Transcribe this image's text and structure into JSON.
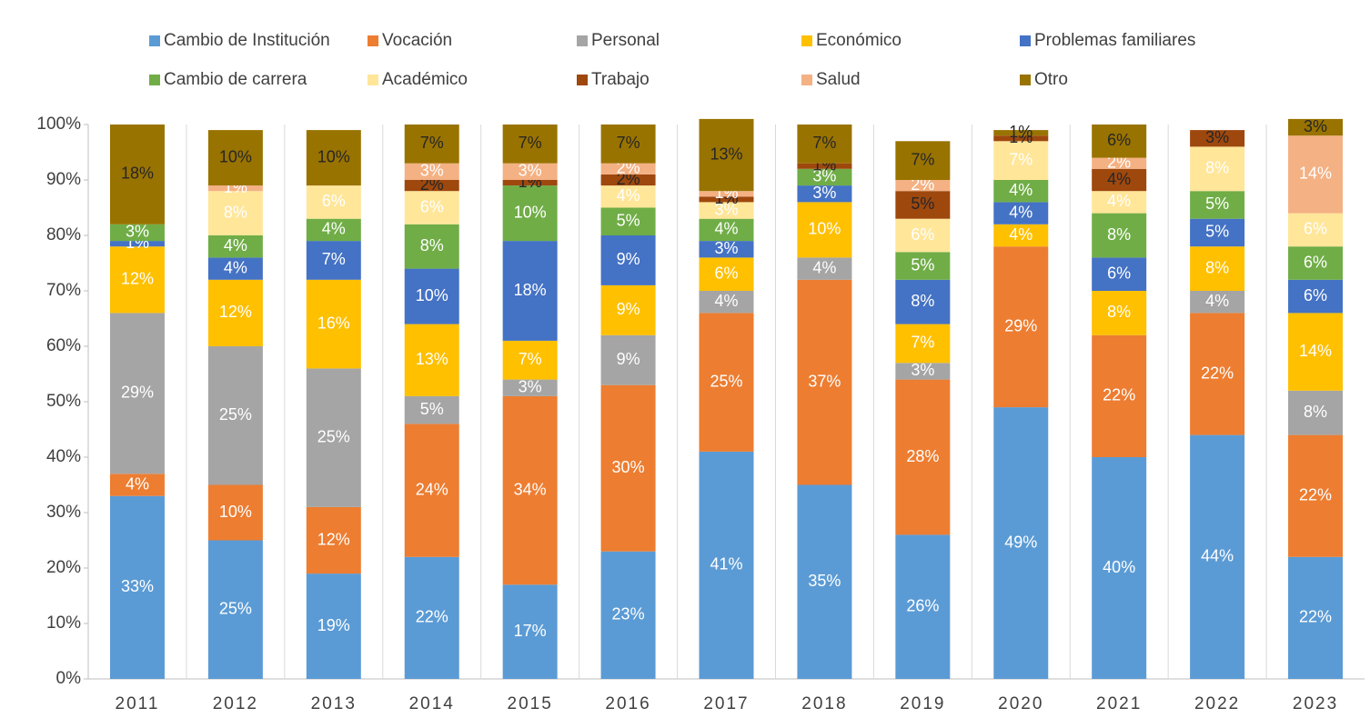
{
  "chart_data": {
    "type": "stacked_bar",
    "categories": [
      "2011",
      "2012",
      "2013",
      "2014",
      "2015",
      "2016",
      "2017",
      "2018",
      "2019",
      "2020",
      "2021",
      "2022",
      "2023"
    ],
    "ylim": [
      0,
      100
    ],
    "yticks": [
      {
        "value": 0,
        "label": "0%"
      },
      {
        "value": 10,
        "label": "10%"
      },
      {
        "value": 20,
        "label": "20%"
      },
      {
        "value": 30,
        "label": "30%"
      },
      {
        "value": 40,
        "label": "40%"
      },
      {
        "value": 50,
        "label": "50%"
      },
      {
        "value": 60,
        "label": "60%"
      },
      {
        "value": 70,
        "label": "70%"
      },
      {
        "value": 80,
        "label": "80%"
      },
      {
        "value": 90,
        "label": "90%"
      },
      {
        "value": 100,
        "label": "100%"
      }
    ],
    "series": [
      {
        "name": "Cambio de Institución",
        "color": "#5b9bd5",
        "values": [
          33,
          25,
          19,
          22,
          17,
          23,
          41,
          35,
          26,
          49,
          40,
          44,
          22
        ],
        "value_labels": [
          "33%",
          "25%",
          "19%",
          "22%",
          "17%",
          "23%",
          "41%",
          "35%",
          "26%",
          "49%",
          "40%",
          "44%",
          "22%"
        ]
      },
      {
        "name": "Vocación",
        "color": "#ed7d31",
        "values": [
          4,
          10,
          12,
          24,
          34,
          30,
          25,
          37,
          28,
          29,
          22,
          22,
          22
        ],
        "value_labels": [
          "4%",
          "10%",
          "12%",
          "24%",
          "34%",
          "30%",
          "25%",
          "37%",
          "28%",
          "29%",
          "22%",
          "22%",
          "22%"
        ]
      },
      {
        "name": "Personal",
        "color": "#a5a5a5",
        "values": [
          29,
          25,
          25,
          5,
          3,
          9,
          4,
          4,
          3,
          0,
          0,
          4,
          8
        ],
        "value_labels": [
          "29%",
          "25%",
          "25%",
          "5%",
          "3%",
          "9%",
          "4%",
          "4%",
          "3%",
          null,
          null,
          "4%",
          "8%"
        ]
      },
      {
        "name": "Económico",
        "color": "#ffc000",
        "values": [
          12,
          12,
          16,
          13,
          7,
          9,
          6,
          10,
          7,
          4,
          8,
          8,
          14
        ],
        "value_labels": [
          "12%",
          "12%",
          "16%",
          "13%",
          "7%",
          "9%",
          "6%",
          "10%",
          "7%",
          "4%",
          "8%",
          "8%",
          "14%"
        ]
      },
      {
        "name": "Problemas familiares",
        "color": "#4472c4",
        "values": [
          1,
          4,
          7,
          10,
          18,
          9,
          3,
          3,
          8,
          4,
          6,
          5,
          6
        ],
        "value_labels": [
          "1%",
          "4%",
          "7%",
          "10%",
          "18%",
          "9%",
          "3%",
          "3%",
          "8%",
          "4%",
          "6%",
          "5%",
          "6%"
        ]
      },
      {
        "name": "Cambio de carrera",
        "color": "#70ad47",
        "values": [
          3,
          4,
          4,
          8,
          10,
          5,
          4,
          3,
          5,
          4,
          8,
          5,
          6
        ],
        "value_labels": [
          "3%",
          "4%",
          "4%",
          "8%",
          "10%",
          "5%",
          "4%",
          "3%",
          "5%",
          "4%",
          "8%",
          "5%",
          "6%"
        ]
      },
      {
        "name": "Académico",
        "color": "#ffe699",
        "values": [
          0,
          8,
          6,
          6,
          0,
          4,
          3,
          0,
          6,
          7,
          4,
          8,
          6
        ],
        "value_labels": [
          null,
          "8%",
          "6%",
          "6%",
          null,
          "4%",
          "3%",
          null,
          "6%",
          "7%",
          "4%",
          "8%",
          "6%"
        ]
      },
      {
        "name": "Trabajo",
        "color": "#9e480e",
        "values": [
          0,
          0,
          0,
          2,
          1,
          2,
          1,
          1,
          5,
          1,
          4,
          3,
          0
        ],
        "value_labels": [
          null,
          null,
          null,
          "2%",
          "1%",
          "2%",
          "1%",
          "1%",
          "5%",
          "1%",
          "4%",
          "3%",
          null
        ]
      },
      {
        "name": "Salud",
        "color": "#f4b183",
        "values": [
          0,
          1,
          0,
          3,
          3,
          2,
          1,
          0,
          2,
          0,
          2,
          0,
          14
        ],
        "value_labels": [
          null,
          "1%",
          null,
          "3%",
          "3%",
          "2%",
          "1%",
          null,
          "2%",
          null,
          "2%",
          null,
          "14%"
        ]
      },
      {
        "name": "Otro",
        "color": "#997300",
        "values": [
          18,
          10,
          10,
          7,
          7,
          7,
          13,
          7,
          7,
          1,
          6,
          0,
          3
        ],
        "value_labels": [
          "18%",
          "10%",
          "10%",
          "7%",
          "7%",
          "7%",
          "13%",
          "7%",
          "7%",
          "1%",
          "6%",
          null,
          "3%"
        ]
      }
    ]
  }
}
